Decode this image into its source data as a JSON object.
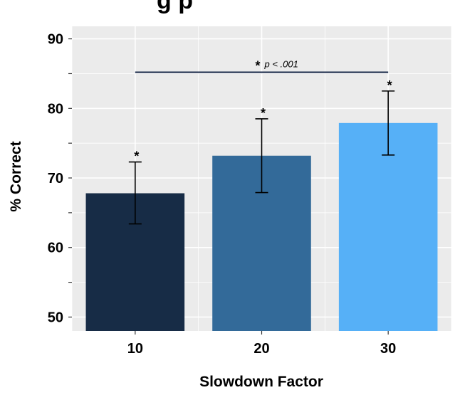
{
  "chart_data": {
    "type": "bar",
    "title": "",
    "title_partial_visible": "g                               p",
    "xlabel": "Slowdown Factor",
    "ylabel": "% Correct",
    "categories": [
      "10",
      "20",
      "30"
    ],
    "values": [
      67.8,
      73.2,
      77.9
    ],
    "error_low": [
      63.4,
      67.9,
      73.3
    ],
    "error_high": [
      72.3,
      78.5,
      82.5
    ],
    "bar_colors": [
      "#172c46",
      "#336a99",
      "#56b0f7"
    ],
    "significance_marks": [
      "*",
      "*",
      "*"
    ],
    "comparison": {
      "from": "10",
      "to": "30",
      "star": "*",
      "label": "p < .001",
      "y": 85.2,
      "color": "#1a2a4a"
    },
    "ylim": [
      48,
      91.8
    ],
    "yticks": [
      50,
      60,
      70,
      80,
      90
    ],
    "grid": true,
    "panel_color": "#ebebeb"
  }
}
